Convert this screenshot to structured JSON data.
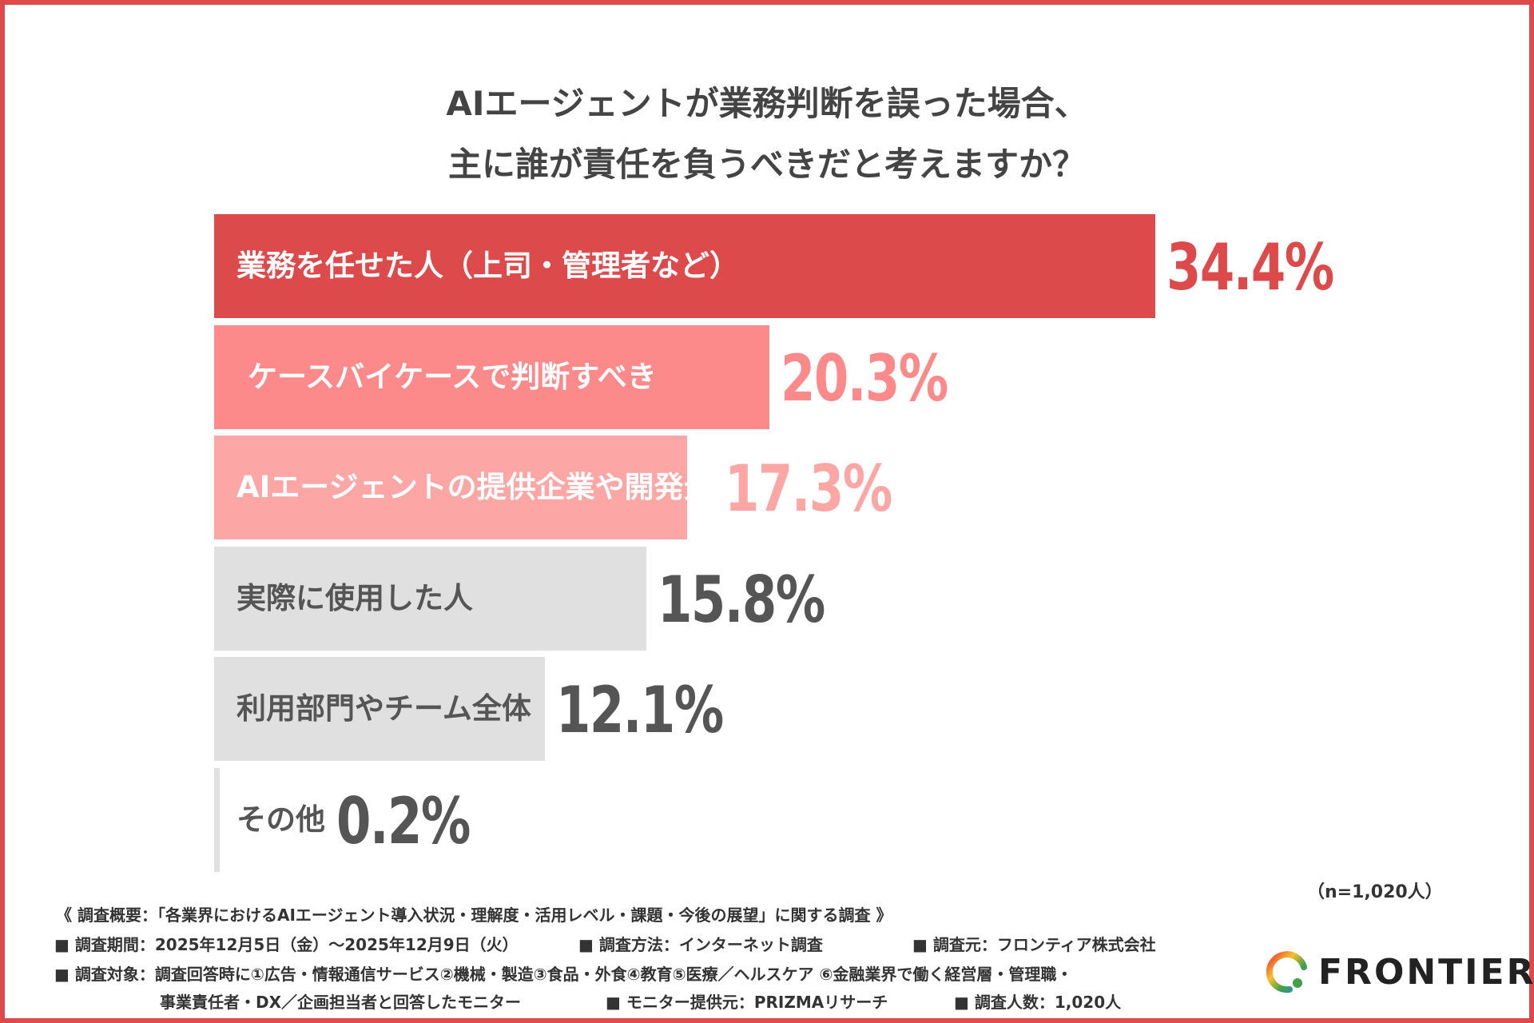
{
  "title_lines": [
    "AIエージェントが業務判断を誤った場合、",
    "主に誰が責任を負うべきだと考えますか？"
  ],
  "chart_data": {
    "type": "bar",
    "orientation": "horizontal",
    "categories": [
      "業務を任せた人（上司・管理者など）",
      "ケースバイケースで判断すべき",
      "AIエージェントの提供企業や開発元",
      "実際に使用した人",
      "利用部門やチーム全体",
      "その他"
    ],
    "values": [
      34.4,
      20.3,
      17.3,
      15.8,
      12.1,
      0.2
    ],
    "value_labels": [
      "34.4%",
      "20.3%",
      "17.3%",
      "15.8%",
      "12.1%",
      "0.2%"
    ],
    "unit": "%",
    "colors": [
      "#dc4a4c",
      "#fc8a8a",
      "#fca6a6",
      "#e0e0e0",
      "#e0e0e0",
      "#e0e0e0"
    ],
    "label_colors": [
      "#ffffff",
      "#ffffff",
      "#ffffff",
      "#555555",
      "#555555",
      "#555555"
    ],
    "value_colors": [
      "#dc4a4c",
      "#fc8a8a",
      "#fca6a6",
      "#555555",
      "#555555",
      "#555555"
    ],
    "sample_note": "（n=1,020人）"
  },
  "footer": {
    "overview": "《 調査概要：「各業界におけるAIエージェント導入状況・理解度・活用レベル・課題・今後の展望」に関する調査 》",
    "period": "■ 調査期間：2025年12月5日（金）～2025年12月9日（火）",
    "method": "■ 調査方法：インターネット調査",
    "source": "■ 調査元：フロンティア株式会社",
    "target_1": "■ 調査対象：調査回答時に①広告・情報通信サービス②機械・製造③食品・外食④教育⑤医療／ヘルスケア ⑥金融業界で働く経営層・管理職・",
    "target_2": "事業責任者・DX／企画担当者と回答したモニター",
    "provider": "■ モニター提供元：PRIZMAリサーチ",
    "count": "■ 調査人数：1,020人"
  },
  "logo": {
    "text": "FRONTIER"
  }
}
